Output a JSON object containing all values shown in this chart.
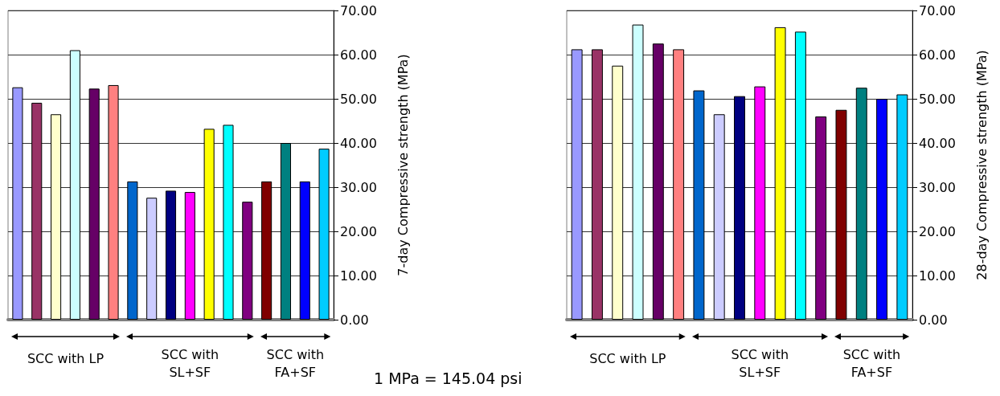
{
  "chart_data": [
    {
      "type": "bar",
      "ylabel": "7-day Compressive strength (MPa)",
      "categories": [
        null,
        null,
        null,
        null,
        null,
        null,
        null,
        null,
        null,
        null,
        null,
        null,
        null,
        null,
        null,
        null,
        null
      ],
      "values": [
        52.6,
        49.1,
        46.5,
        61.0,
        52.3,
        53.1,
        31.3,
        27.6,
        29.2,
        28.9,
        43.2,
        44.1,
        26.7,
        31.3,
        40.0,
        31.3,
        38.7
      ],
      "colors": [
        "#9999ff",
        "#993366",
        "#ffffcc",
        "#ccffff",
        "#660066",
        "#ff8080",
        "#0066cc",
        "#ccccff",
        "#000080",
        "#ff00ff",
        "#ffff00",
        "#00ffff",
        "#800080",
        "#800000",
        "#008080",
        "#0000ff",
        "#00ccff"
      ],
      "ylim": [
        0,
        70
      ],
      "yticks": [
        {
          "value": 0,
          "label": "0.00"
        },
        {
          "value": 10,
          "label": "10.00"
        },
        {
          "value": 20,
          "label": "20.00"
        },
        {
          "value": 30,
          "label": "30.00"
        },
        {
          "value": 40,
          "label": "40.00"
        },
        {
          "value": 50,
          "label": "50.00"
        },
        {
          "value": 60,
          "label": "60.00"
        },
        {
          "value": 70,
          "label": "70.00"
        }
      ],
      "grid": "y",
      "annotations": [
        "SCC with LP",
        "SCC with SL+SF",
        "SCC with FA+SF",
        "1 MPa = 145.04 psi"
      ]
    },
    {
      "type": "bar",
      "ylabel": "28-day Compressive strength (MPa)",
      "categories": [
        null,
        null,
        null,
        null,
        null,
        null,
        null,
        null,
        null,
        null,
        null,
        null,
        null,
        null,
        null,
        null,
        null
      ],
      "values": [
        61.2,
        61.2,
        57.5,
        66.8,
        62.5,
        61.2,
        51.9,
        46.5,
        50.6,
        52.8,
        66.2,
        65.2,
        46.0,
        47.5,
        52.5,
        50.0,
        51.0
      ],
      "colors": [
        "#9999ff",
        "#993366",
        "#ffffcc",
        "#ccffff",
        "#660066",
        "#ff8080",
        "#0066cc",
        "#ccccff",
        "#000080",
        "#ff00ff",
        "#ffff00",
        "#00ffff",
        "#800080",
        "#800000",
        "#008080",
        "#0000ff",
        "#00ccff"
      ],
      "ylim": [
        0,
        70
      ],
      "yticks": [
        {
          "value": 0,
          "label": "0.00"
        },
        {
          "value": 10,
          "label": "10.00"
        },
        {
          "value": 20,
          "label": "20.00"
        },
        {
          "value": 30,
          "label": "30.00"
        },
        {
          "value": 40,
          "label": "40.00"
        },
        {
          "value": 50,
          "label": "50.00"
        },
        {
          "value": 60,
          "label": "60.00"
        },
        {
          "value": 70,
          "label": "70.00"
        }
      ],
      "grid": "y",
      "annotations": [
        "SCC with LP",
        "SCC with SL+SF",
        "SCC with FA+SF"
      ]
    }
  ]
}
